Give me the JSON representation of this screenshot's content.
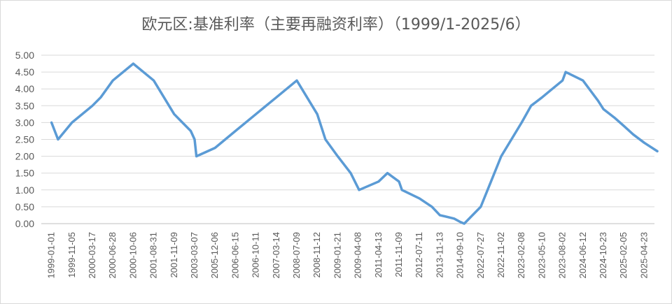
{
  "chart_data": {
    "type": "line",
    "title": "欧元区:基准利率（主要再融资利率）（1999/1-2025/6）",
    "xlabel": "",
    "ylabel": "",
    "ylim": [
      0,
      5
    ],
    "y_ticks": [
      "5.00",
      "4.50",
      "4.00",
      "3.50",
      "3.00",
      "2.50",
      "2.00",
      "1.50",
      "1.00",
      "0.50",
      "0.00"
    ],
    "x_tick_labels": [
      "1999-01-01",
      "1999-11-05",
      "2000-03-17",
      "2000-06-28",
      "2000-10-06",
      "2001-08-31",
      "2001-11-09",
      "2003-03-07",
      "2005-12-06",
      "2006-06-15",
      "2006-10-11",
      "2007-03-14",
      "2008-07-09",
      "2008-11-12",
      "2009-01-21",
      "2009-04-08",
      "2011-04-13",
      "2011-11-09",
      "2012-07-11",
      "2013-11-13",
      "2014-09-10",
      "2022-07-27",
      "2022-11-02",
      "2023-02-08",
      "2023-05-10",
      "2023-08-02",
      "2024-06-12",
      "2024-10-23",
      "2025-02-05",
      "2025-04-23"
    ],
    "grid": true,
    "legend": "none",
    "colors": {
      "line": "#5b9bd5",
      "grid": "#d9d9d9",
      "text": "#595959"
    },
    "series": [
      {
        "points": [
          {
            "x": "1999-01-01",
            "y": 3.0
          },
          {
            "x": "1999-04-09",
            "y": 2.5
          },
          {
            "x": "1999-11-05",
            "y": 3.0
          },
          {
            "x": "2000-03-17",
            "y": 3.5
          },
          {
            "x": "2000-04-28",
            "y": 3.75
          },
          {
            "x": "2000-06-28",
            "y": 4.25
          },
          {
            "x": "2000-10-06",
            "y": 4.75
          },
          {
            "x": "2001-08-31",
            "y": 4.25
          },
          {
            "x": "2001-11-09",
            "y": 3.25
          },
          {
            "x": "2002-12-06",
            "y": 2.75
          },
          {
            "x": "2003-03-07",
            "y": 2.5
          },
          {
            "x": "2003-06-06",
            "y": 2.0
          },
          {
            "x": "2005-12-06",
            "y": 2.25
          },
          {
            "x": "2006-06-15",
            "y": 2.75
          },
          {
            "x": "2006-10-11",
            "y": 3.25
          },
          {
            "x": "2007-03-14",
            "y": 3.75
          },
          {
            "x": "2008-07-09",
            "y": 4.25
          },
          {
            "x": "2008-11-12",
            "y": 3.25
          },
          {
            "x": "2008-12-10",
            "y": 2.5
          },
          {
            "x": "2009-01-21",
            "y": 2.0
          },
          {
            "x": "2009-03-11",
            "y": 1.5
          },
          {
            "x": "2009-05-13",
            "y": 1.0
          },
          {
            "x": "2011-04-13",
            "y": 1.25
          },
          {
            "x": "2011-07-13",
            "y": 1.5
          },
          {
            "x": "2011-11-09",
            "y": 1.25
          },
          {
            "x": "2011-12-14",
            "y": 1.0
          },
          {
            "x": "2012-07-11",
            "y": 0.75
          },
          {
            "x": "2013-05-08",
            "y": 0.5
          },
          {
            "x": "2013-11-13",
            "y": 0.25
          },
          {
            "x": "2014-06-11",
            "y": 0.15
          },
          {
            "x": "2014-09-10",
            "y": 0.05
          },
          {
            "x": "2016-03-16",
            "y": 0.0
          },
          {
            "x": "2022-07-27",
            "y": 0.5
          },
          {
            "x": "2022-09-14",
            "y": 1.25
          },
          {
            "x": "2022-11-02",
            "y": 2.0
          },
          {
            "x": "2022-12-21",
            "y": 2.5
          },
          {
            "x": "2023-02-08",
            "y": 3.0
          },
          {
            "x": "2023-03-22",
            "y": 3.5
          },
          {
            "x": "2023-05-10",
            "y": 3.75
          },
          {
            "x": "2023-06-21",
            "y": 4.0
          },
          {
            "x": "2023-08-02",
            "y": 4.25
          },
          {
            "x": "2023-09-20",
            "y": 4.5
          },
          {
            "x": "2024-06-12",
            "y": 4.25
          },
          {
            "x": "2024-09-18",
            "y": 3.65
          },
          {
            "x": "2024-10-23",
            "y": 3.4
          },
          {
            "x": "2024-12-18",
            "y": 3.15
          },
          {
            "x": "2025-02-05",
            "y": 2.9
          },
          {
            "x": "2025-03-12",
            "y": 2.65
          },
          {
            "x": "2025-04-23",
            "y": 2.4
          },
          {
            "x": "2025-06-11",
            "y": 2.15
          }
        ]
      }
    ]
  }
}
